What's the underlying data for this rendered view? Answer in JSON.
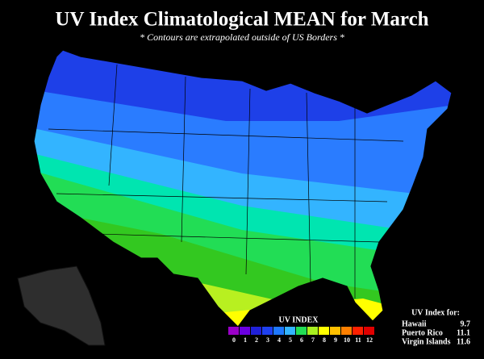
{
  "header": {
    "title": "UV Index Climatological MEAN for March",
    "subtitle": "* Contours are extrapolated outside of US Borders *"
  },
  "legend": {
    "title": "UV INDEX",
    "ticks": [
      0,
      1,
      2,
      3,
      4,
      5,
      6,
      7,
      8,
      9,
      10,
      11,
      12
    ],
    "colors": [
      "#9a00c8",
      "#6a00e0",
      "#2020d8",
      "#1e40f0",
      "#1e78ff",
      "#33b4ff",
      "#22dd55",
      "#a8f020",
      "#ffff00",
      "#ffc000",
      "#ff8000",
      "#ff2000",
      "#e00000"
    ]
  },
  "table": {
    "title": "UV Index for:",
    "rows": [
      [
        "Hawaii",
        "9.7"
      ],
      [
        "Puerto Rico",
        "11.1"
      ],
      [
        "Virgin Islands",
        "11.6"
      ]
    ]
  }
}
